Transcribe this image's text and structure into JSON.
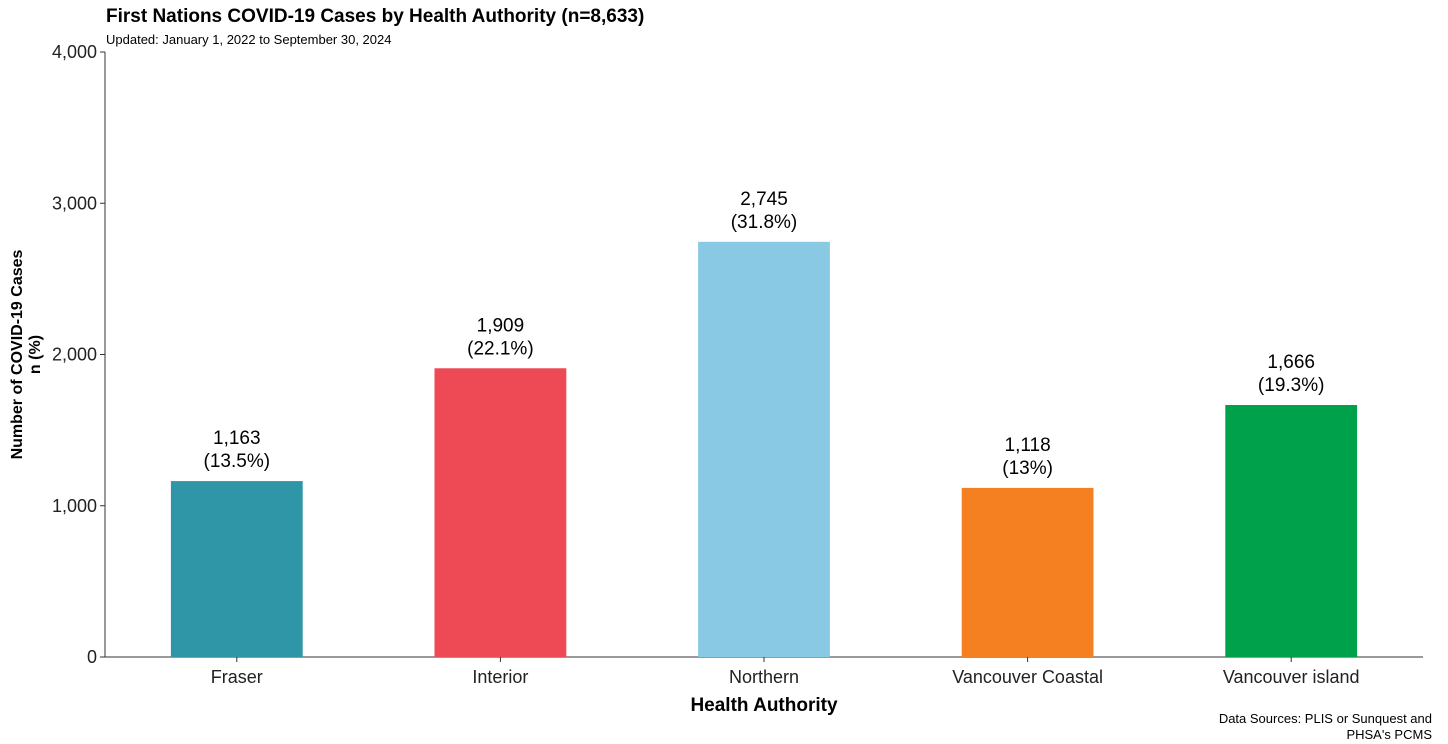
{
  "header": {
    "title": "First Nations COVID-19 Cases by Health Authority (n=8,633)",
    "subtitle": "Updated: January 1, 2022 to September 30, 2024"
  },
  "footer": {
    "caption_line1": "Data Sources: PLIS or Sunquest and",
    "caption_line2": "PHSA's PCMS"
  },
  "chart_data": {
    "type": "bar",
    "title": "First Nations COVID-19 Cases by Health Authority (n=8,633)",
    "subtitle": "Updated: January 1, 2022 to September 30, 2024",
    "xlabel": "Health Authority",
    "ylabel_line1": "Number of COVID-19 Cases",
    "ylabel_line2": "n (%)",
    "ylim": [
      0,
      4000
    ],
    "yticks": [
      0,
      1000,
      2000,
      3000,
      4000
    ],
    "ytick_labels": [
      "0",
      "1,000",
      "2,000",
      "3,000",
      "4,000"
    ],
    "grid": false,
    "categories": [
      "Fraser",
      "Interior",
      "Northern",
      "Vancouver Coastal",
      "Vancouver island"
    ],
    "values": [
      1163,
      1909,
      2745,
      1118,
      1666
    ],
    "value_labels": [
      "1,163",
      "1,909",
      "2,745",
      "1,118",
      "1,666"
    ],
    "percent_labels": [
      "(13.5%)",
      "(22.1%)",
      "(31.8%)",
      "(13%)",
      "(19.3%)"
    ],
    "colors": [
      "#2E96A6",
      "#EE4A55",
      "#8AC9E3",
      "#F48021",
      "#00A14B"
    ]
  }
}
